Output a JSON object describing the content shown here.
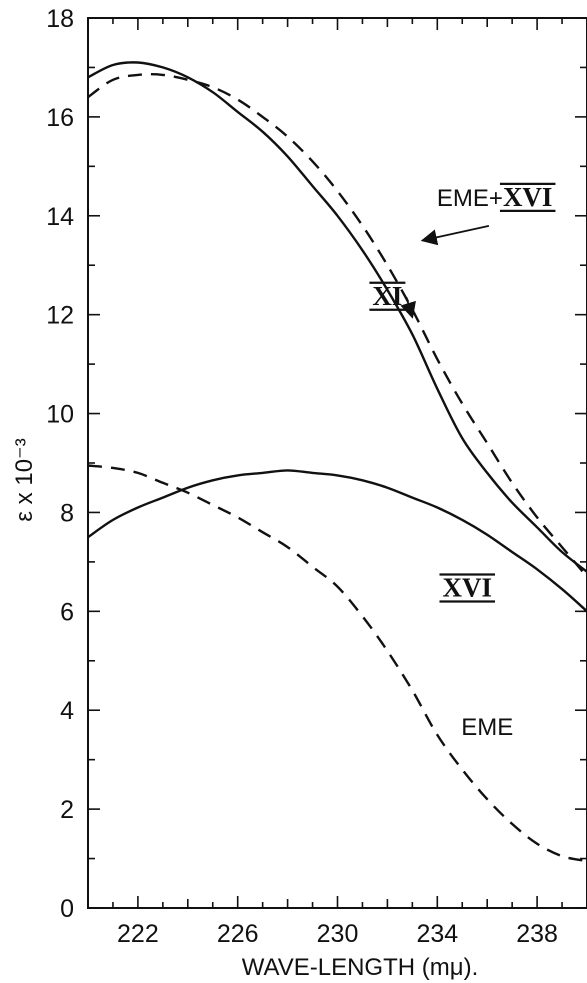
{
  "chart_data": {
    "type": "line",
    "title": "",
    "xlabel": "WAVE-LENGTH (mμ).",
    "ylabel": "ε x 10⁻³",
    "xlim": [
      220,
      240
    ],
    "ylim": [
      0,
      18
    ],
    "xticks": [
      222,
      226,
      230,
      234,
      238
    ],
    "yticks": [
      0,
      2,
      4,
      6,
      8,
      10,
      12,
      14,
      16,
      18
    ],
    "grid": false,
    "legend": "none",
    "series": [
      {
        "name": "XI",
        "style": "solid",
        "x": [
          220,
          221,
          222,
          223,
          224,
          225,
          226,
          227,
          228,
          229,
          230,
          231,
          232,
          233,
          234,
          235,
          236,
          237,
          238,
          239,
          240
        ],
        "y": [
          16.8,
          17.05,
          17.1,
          17.0,
          16.8,
          16.5,
          16.1,
          15.7,
          15.2,
          14.6,
          14.0,
          13.3,
          12.5,
          11.6,
          10.5,
          9.5,
          8.8,
          8.2,
          7.7,
          7.2,
          6.8
        ]
      },
      {
        "name": "EME+XVI",
        "style": "dashed",
        "x": [
          220,
          221,
          222,
          223,
          224,
          225,
          226,
          227,
          228,
          229,
          230,
          231,
          232,
          233,
          234,
          235,
          236,
          237,
          238,
          239,
          240
        ],
        "y": [
          16.4,
          16.75,
          16.85,
          16.85,
          16.75,
          16.6,
          16.35,
          16.0,
          15.6,
          15.1,
          14.5,
          13.8,
          13.0,
          12.1,
          11.1,
          10.2,
          9.4,
          8.6,
          7.9,
          7.3,
          6.7
        ]
      },
      {
        "name": "XVI",
        "style": "solid",
        "x": [
          220,
          221,
          222,
          223,
          224,
          225,
          226,
          227,
          228,
          229,
          230,
          231,
          232,
          233,
          234,
          235,
          236,
          237,
          238,
          239,
          240
        ],
        "y": [
          7.5,
          7.85,
          8.1,
          8.3,
          8.5,
          8.65,
          8.75,
          8.8,
          8.85,
          8.8,
          8.75,
          8.65,
          8.5,
          8.3,
          8.1,
          7.85,
          7.55,
          7.2,
          6.85,
          6.45,
          6.0
        ]
      },
      {
        "name": "EME",
        "style": "dashed",
        "x": [
          220,
          221,
          222,
          223,
          224,
          225,
          226,
          227,
          228,
          229,
          230,
          231,
          232,
          233,
          234,
          235,
          236,
          237,
          238,
          239,
          240
        ],
        "y": [
          8.95,
          8.9,
          8.8,
          8.6,
          8.4,
          8.15,
          7.9,
          7.6,
          7.3,
          6.9,
          6.5,
          5.9,
          5.2,
          4.4,
          3.5,
          2.8,
          2.2,
          1.7,
          1.3,
          1.05,
          0.95
        ]
      }
    ],
    "annotations": [
      {
        "prefix": "EME+",
        "roman": "XVI",
        "x": 236.3,
        "y": 14.2,
        "arrow_to": [
          233.4,
          13.5
        ]
      },
      {
        "prefix": "",
        "roman": "XI",
        "x": 232.0,
        "y": 12.2,
        "arrow_to": [
          233.0,
          11.95
        ]
      },
      {
        "prefix": "",
        "roman": "XVI",
        "x": 235.2,
        "y": 6.3,
        "arrow_to": null
      },
      {
        "prefix": "EME",
        "roman": "",
        "x": 236.0,
        "y": 3.5,
        "arrow_to": null
      }
    ]
  }
}
